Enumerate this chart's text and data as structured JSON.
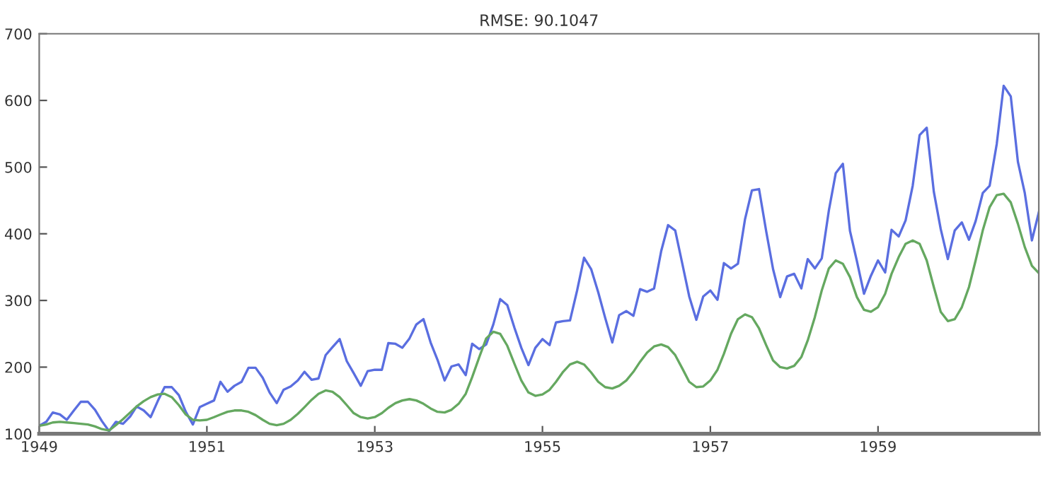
{
  "chart_data": {
    "type": "line",
    "title": "RMSE: 90.1047",
    "x": [
      "1949-01",
      "1949-02",
      "1949-03",
      "1949-04",
      "1949-05",
      "1949-06",
      "1949-07",
      "1949-08",
      "1949-09",
      "1949-10",
      "1949-11",
      "1949-12",
      "1950-01",
      "1950-02",
      "1950-03",
      "1950-04",
      "1950-05",
      "1950-06",
      "1950-07",
      "1950-08",
      "1950-09",
      "1950-10",
      "1950-11",
      "1950-12",
      "1951-01",
      "1951-02",
      "1951-03",
      "1951-04",
      "1951-05",
      "1951-06",
      "1951-07",
      "1951-08",
      "1951-09",
      "1951-10",
      "1951-11",
      "1951-12",
      "1952-01",
      "1952-02",
      "1952-03",
      "1952-04",
      "1952-05",
      "1952-06",
      "1952-07",
      "1952-08",
      "1952-09",
      "1952-10",
      "1952-11",
      "1952-12",
      "1953-01",
      "1953-02",
      "1953-03",
      "1953-04",
      "1953-05",
      "1953-06",
      "1953-07",
      "1953-08",
      "1953-09",
      "1953-10",
      "1953-11",
      "1953-12",
      "1954-01",
      "1954-02",
      "1954-03",
      "1954-04",
      "1954-05",
      "1954-06",
      "1954-07",
      "1954-08",
      "1954-09",
      "1954-10",
      "1954-11",
      "1954-12",
      "1955-01",
      "1955-02",
      "1955-03",
      "1955-04",
      "1955-05",
      "1955-06",
      "1955-07",
      "1955-08",
      "1955-09",
      "1955-10",
      "1955-11",
      "1955-12",
      "1956-01",
      "1956-02",
      "1956-03",
      "1956-04",
      "1956-05",
      "1956-06",
      "1956-07",
      "1956-08",
      "1956-09",
      "1956-10",
      "1956-11",
      "1956-12",
      "1957-01",
      "1957-02",
      "1957-03",
      "1957-04",
      "1957-05",
      "1957-06",
      "1957-07",
      "1957-08",
      "1957-09",
      "1957-10",
      "1957-11",
      "1957-12",
      "1958-01",
      "1958-02",
      "1958-03",
      "1958-04",
      "1958-05",
      "1958-06",
      "1958-07",
      "1958-08",
      "1958-09",
      "1958-10",
      "1958-11",
      "1958-12",
      "1959-01",
      "1959-02",
      "1959-03",
      "1959-04",
      "1959-05",
      "1959-06",
      "1959-07",
      "1959-08",
      "1959-09",
      "1959-10",
      "1959-11",
      "1959-12",
      "1960-01",
      "1960-02",
      "1960-03",
      "1960-04",
      "1960-05",
      "1960-06",
      "1960-07",
      "1960-08",
      "1960-09",
      "1960-10",
      "1960-11",
      "1960-12"
    ],
    "series": [
      {
        "color": "#5a6ee0",
        "values": [
          112,
          118,
          132,
          129,
          121,
          135,
          148,
          148,
          136,
          119,
          104,
          118,
          115,
          126,
          141,
          135,
          125,
          149,
          170,
          170,
          158,
          133,
          114,
          140,
          145,
          150,
          178,
          163,
          172,
          178,
          199,
          199,
          184,
          162,
          146,
          166,
          171,
          180,
          193,
          181,
          183,
          218,
          230,
          242,
          209,
          191,
          172,
          194,
          196,
          196,
          236,
          235,
          229,
          243,
          264,
          272,
          237,
          211,
          180,
          201,
          204,
          188,
          235,
          227,
          234,
          264,
          302,
          293,
          259,
          229,
          203,
          229,
          242,
          233,
          267,
          269,
          270,
          315,
          364,
          347,
          312,
          274,
          237,
          278,
          284,
          277,
          317,
          313,
          318,
          374,
          413,
          405,
          355,
          306,
          271,
          306,
          315,
          301,
          356,
          348,
          355,
          422,
          465,
          467,
          404,
          347,
          305,
          336,
          340,
          318,
          362,
          348,
          363,
          435,
          491,
          505,
          404,
          359,
          310,
          337,
          360,
          342,
          406,
          396,
          420,
          472,
          548,
          559,
          463,
          407,
          362,
          405,
          417,
          391,
          419,
          461,
          472,
          535,
          622,
          606,
          508,
          461,
          390,
          432
        ]
      },
      {
        "color": "#65a860",
        "values": [
          112,
          114,
          117,
          118,
          117,
          116,
          115,
          114,
          111,
          107,
          105,
          113,
          122,
          132,
          141,
          149,
          155,
          159,
          160,
          155,
          143,
          129,
          121,
          120,
          121,
          125,
          129,
          133,
          135,
          135,
          133,
          128,
          121,
          115,
          113,
          115,
          121,
          130,
          140,
          151,
          160,
          165,
          163,
          155,
          143,
          131,
          125,
          123,
          125,
          131,
          139,
          146,
          150,
          152,
          150,
          145,
          138,
          133,
          132,
          136,
          145,
          160,
          185,
          215,
          243,
          253,
          250,
          232,
          205,
          180,
          162,
          157,
          159,
          166,
          178,
          193,
          204,
          208,
          204,
          192,
          178,
          170,
          168,
          172,
          180,
          193,
          208,
          222,
          231,
          234,
          230,
          218,
          198,
          178,
          170,
          171,
          180,
          196,
          220,
          250,
          272,
          279,
          275,
          258,
          233,
          210,
          200,
          198,
          202,
          215,
          240,
          275,
          315,
          348,
          360,
          355,
          335,
          305,
          286,
          283,
          290,
          310,
          340,
          365,
          385,
          390,
          385,
          360,
          320,
          283,
          269,
          272,
          290,
          320,
          360,
          405,
          440,
          458,
          460,
          447,
          415,
          380,
          352,
          341
        ]
      }
    ],
    "xlim": [
      "1949-01",
      "1960-12"
    ],
    "xticks": [
      {
        "value": "1949-01",
        "label": "1949"
      },
      {
        "value": "1951-01",
        "label": "1951"
      },
      {
        "value": "1953-01",
        "label": "1953"
      },
      {
        "value": "1955-01",
        "label": "1955"
      },
      {
        "value": "1957-01",
        "label": "1957"
      },
      {
        "value": "1959-01",
        "label": "1959"
      }
    ],
    "ylim": [
      100,
      700
    ],
    "yticks": [
      100,
      200,
      300,
      400,
      500,
      600,
      700
    ],
    "grid": false
  }
}
